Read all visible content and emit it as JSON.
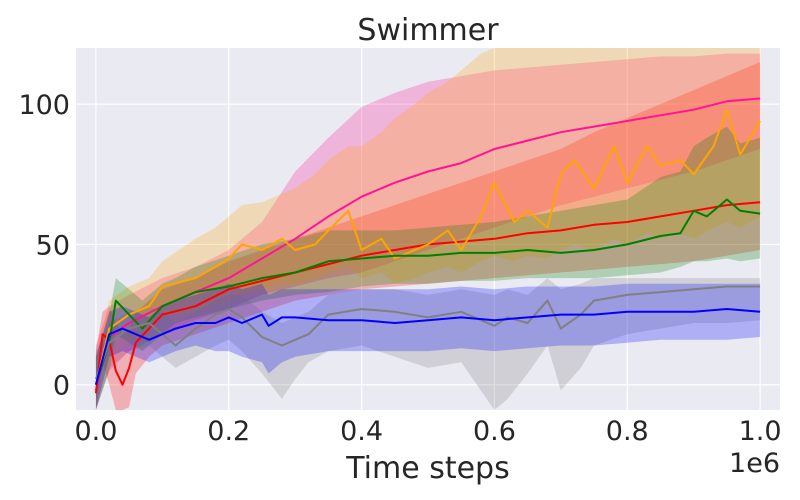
{
  "chart_data": {
    "type": "line",
    "title": "Swimmer",
    "xlabel": "Time steps",
    "ylabel": "",
    "x_scale_label": "1e6",
    "xlim": [
      -0.03,
      1.03
    ],
    "ylim": [
      -9,
      120
    ],
    "xticks": [
      0.0,
      0.2,
      0.4,
      0.6,
      0.8,
      1.0
    ],
    "xtick_labels": [
      "0.0",
      "0.2",
      "0.4",
      "0.6",
      "0.8",
      "1.0"
    ],
    "yticks": [
      0,
      50,
      100
    ],
    "ytick_labels": [
      "0",
      "50",
      "100"
    ],
    "grid": true,
    "legend": "none",
    "colors": {
      "background": "#eaeaf2",
      "grid": "#ffffff",
      "deeppink": "#ff1493",
      "red": "#ff0000",
      "orange": "#ffa500",
      "green": "#008000",
      "gray": "#808080",
      "blue": "#0000ff"
    },
    "series": [
      {
        "color": "#ff1493",
        "x": [
          0.0,
          0.02,
          0.05,
          0.1,
          0.15,
          0.2,
          0.25,
          0.3,
          0.35,
          0.4,
          0.45,
          0.5,
          0.55,
          0.6,
          0.65,
          0.7,
          0.75,
          0.8,
          0.85,
          0.9,
          0.95,
          1.0
        ],
        "y": [
          -2,
          17,
          22,
          28,
          33,
          38,
          45,
          52,
          60,
          67,
          72,
          76,
          79,
          84,
          87,
          90,
          92,
          94,
          96,
          98,
          101,
          102
        ],
        "upper": [
          14,
          28,
          32,
          38,
          42,
          48,
          58,
          76,
          88,
          99,
          104,
          108,
          110,
          112,
          113,
          114,
          115,
          116,
          117,
          117,
          118,
          118
        ],
        "lower": [
          -9,
          5,
          12,
          18,
          23,
          27,
          32,
          35,
          38,
          40,
          44,
          48,
          52,
          56,
          60,
          64,
          67,
          70,
          73,
          76,
          80,
          84
        ]
      },
      {
        "color": "#ff0000",
        "x": [
          0.0,
          0.01,
          0.02,
          0.03,
          0.04,
          0.05,
          0.06,
          0.08,
          0.1,
          0.15,
          0.2,
          0.25,
          0.3,
          0.35,
          0.4,
          0.45,
          0.5,
          0.55,
          0.6,
          0.65,
          0.7,
          0.75,
          0.8,
          0.85,
          0.9,
          0.95,
          1.0
        ],
        "y": [
          -3,
          18,
          16,
          5,
          0,
          6,
          15,
          20,
          25,
          28,
          34,
          37,
          40,
          43,
          46,
          48,
          50,
          51,
          52,
          54,
          55,
          57,
          58,
          60,
          62,
          64,
          65
        ],
        "upper": [
          12,
          26,
          28,
          22,
          18,
          20,
          26,
          30,
          34,
          38,
          44,
          48,
          52,
          56,
          60,
          64,
          68,
          72,
          76,
          80,
          84,
          90,
          95,
          100,
          105,
          110,
          115
        ],
        "lower": [
          -9,
          8,
          0,
          -9,
          -9,
          -8,
          4,
          10,
          14,
          18,
          22,
          26,
          30,
          32,
          34,
          35,
          36,
          37,
          38,
          39,
          40,
          41,
          42,
          43,
          44,
          46,
          48
        ]
      },
      {
        "color": "#ffa500",
        "x": [
          0.0,
          0.02,
          0.05,
          0.08,
          0.1,
          0.15,
          0.18,
          0.2,
          0.22,
          0.25,
          0.28,
          0.3,
          0.33,
          0.35,
          0.38,
          0.4,
          0.43,
          0.45,
          0.48,
          0.5,
          0.53,
          0.55,
          0.58,
          0.6,
          0.63,
          0.65,
          0.68,
          0.7,
          0.72,
          0.75,
          0.78,
          0.8,
          0.83,
          0.85,
          0.88,
          0.9,
          0.93,
          0.95,
          0.97,
          1.0
        ],
        "y": [
          0,
          20,
          25,
          28,
          35,
          38,
          42,
          45,
          50,
          48,
          52,
          48,
          50,
          55,
          62,
          48,
          52,
          45,
          48,
          50,
          55,
          48,
          60,
          72,
          58,
          62,
          56,
          75,
          80,
          70,
          85,
          72,
          85,
          78,
          80,
          75,
          85,
          98,
          82,
          94
        ],
        "upper": [
          10,
          30,
          35,
          38,
          44,
          52,
          56,
          60,
          64,
          65,
          68,
          70,
          75,
          80,
          85,
          85,
          90,
          95,
          100,
          104,
          108,
          112,
          118,
          120,
          120,
          120,
          120,
          120,
          120,
          120,
          120,
          120,
          120,
          120,
          120,
          120,
          120,
          120,
          120,
          120
        ],
        "lower": [
          -9,
          10,
          15,
          20,
          24,
          26,
          28,
          30,
          32,
          34,
          36,
          36,
          38,
          40,
          42,
          38,
          40,
          36,
          38,
          40,
          42,
          40,
          44,
          46,
          44,
          46,
          45,
          48,
          50,
          48,
          52,
          50,
          54,
          52,
          54,
          52,
          56,
          58,
          56,
          60
        ]
      },
      {
        "color": "#008000",
        "x": [
          0.0,
          0.02,
          0.03,
          0.05,
          0.07,
          0.1,
          0.12,
          0.15,
          0.2,
          0.25,
          0.3,
          0.35,
          0.4,
          0.45,
          0.5,
          0.55,
          0.6,
          0.65,
          0.7,
          0.75,
          0.8,
          0.85,
          0.88,
          0.9,
          0.92,
          0.95,
          0.97,
          1.0
        ],
        "y": [
          0,
          15,
          30,
          25,
          20,
          28,
          30,
          33,
          35,
          38,
          40,
          44,
          45,
          46,
          46,
          47,
          47,
          48,
          47,
          48,
          50,
          53,
          54,
          62,
          60,
          66,
          62,
          61
        ],
        "upper": [
          10,
          25,
          38,
          34,
          30,
          36,
          38,
          42,
          46,
          50,
          52,
          55,
          55,
          55,
          56,
          57,
          58,
          60,
          62,
          64,
          66,
          74,
          76,
          85,
          88,
          92,
          86,
          88
        ],
        "lower": [
          -9,
          5,
          18,
          15,
          12,
          18,
          22,
          24,
          27,
          30,
          32,
          33,
          35,
          36,
          36,
          37,
          37,
          38,
          38,
          38,
          39,
          40,
          42,
          44,
          44,
          45,
          44,
          45
        ]
      },
      {
        "color": "#808080",
        "x": [
          0.0,
          0.02,
          0.05,
          0.08,
          0.1,
          0.12,
          0.15,
          0.18,
          0.2,
          0.22,
          0.25,
          0.28,
          0.3,
          0.32,
          0.35,
          0.4,
          0.45,
          0.5,
          0.55,
          0.6,
          0.62,
          0.65,
          0.68,
          0.7,
          0.73,
          0.75,
          0.8,
          0.85,
          0.9,
          0.95,
          1.0
        ],
        "y": [
          2,
          15,
          20,
          22,
          18,
          14,
          20,
          25,
          27,
          24,
          17,
          14,
          16,
          18,
          25,
          27,
          26,
          24,
          26,
          21,
          24,
          22,
          30,
          20,
          25,
          30,
          32,
          33,
          34,
          35,
          35
        ],
        "upper": [
          12,
          22,
          26,
          28,
          26,
          22,
          26,
          30,
          32,
          32,
          26,
          22,
          24,
          26,
          32,
          34,
          34,
          32,
          34,
          32,
          34,
          32,
          38,
          34,
          36,
          38,
          38,
          38,
          38,
          38,
          38
        ],
        "lower": [
          -9,
          6,
          12,
          14,
          10,
          6,
          10,
          14,
          16,
          12,
          4,
          -5,
          2,
          8,
          12,
          14,
          10,
          6,
          8,
          -9,
          -5,
          4,
          14,
          -2,
          6,
          14,
          18,
          20,
          22,
          22,
          23
        ]
      },
      {
        "color": "#0000ff",
        "x": [
          0.0,
          0.02,
          0.04,
          0.06,
          0.08,
          0.1,
          0.12,
          0.15,
          0.18,
          0.2,
          0.22,
          0.25,
          0.26,
          0.28,
          0.3,
          0.35,
          0.4,
          0.45,
          0.5,
          0.55,
          0.6,
          0.65,
          0.7,
          0.75,
          0.8,
          0.85,
          0.9,
          0.95,
          1.0
        ],
        "y": [
          0,
          18,
          20,
          18,
          16,
          18,
          20,
          22,
          22,
          24,
          22,
          25,
          21,
          24,
          24,
          23,
          23,
          22,
          23,
          24,
          23,
          24,
          25,
          25,
          26,
          26,
          26,
          27,
          26
        ],
        "upper": [
          10,
          26,
          28,
          26,
          24,
          28,
          30,
          32,
          34,
          36,
          34,
          36,
          32,
          34,
          34,
          34,
          34,
          34,
          34,
          35,
          34,
          35,
          35,
          35,
          36,
          36,
          36,
          36,
          36
        ],
        "lower": [
          -9,
          10,
          12,
          10,
          8,
          10,
          12,
          14,
          12,
          12,
          10,
          8,
          4,
          8,
          10,
          12,
          12,
          12,
          12,
          13,
          12,
          13,
          14,
          14,
          15,
          16,
          16,
          16,
          17
        ]
      }
    ]
  }
}
